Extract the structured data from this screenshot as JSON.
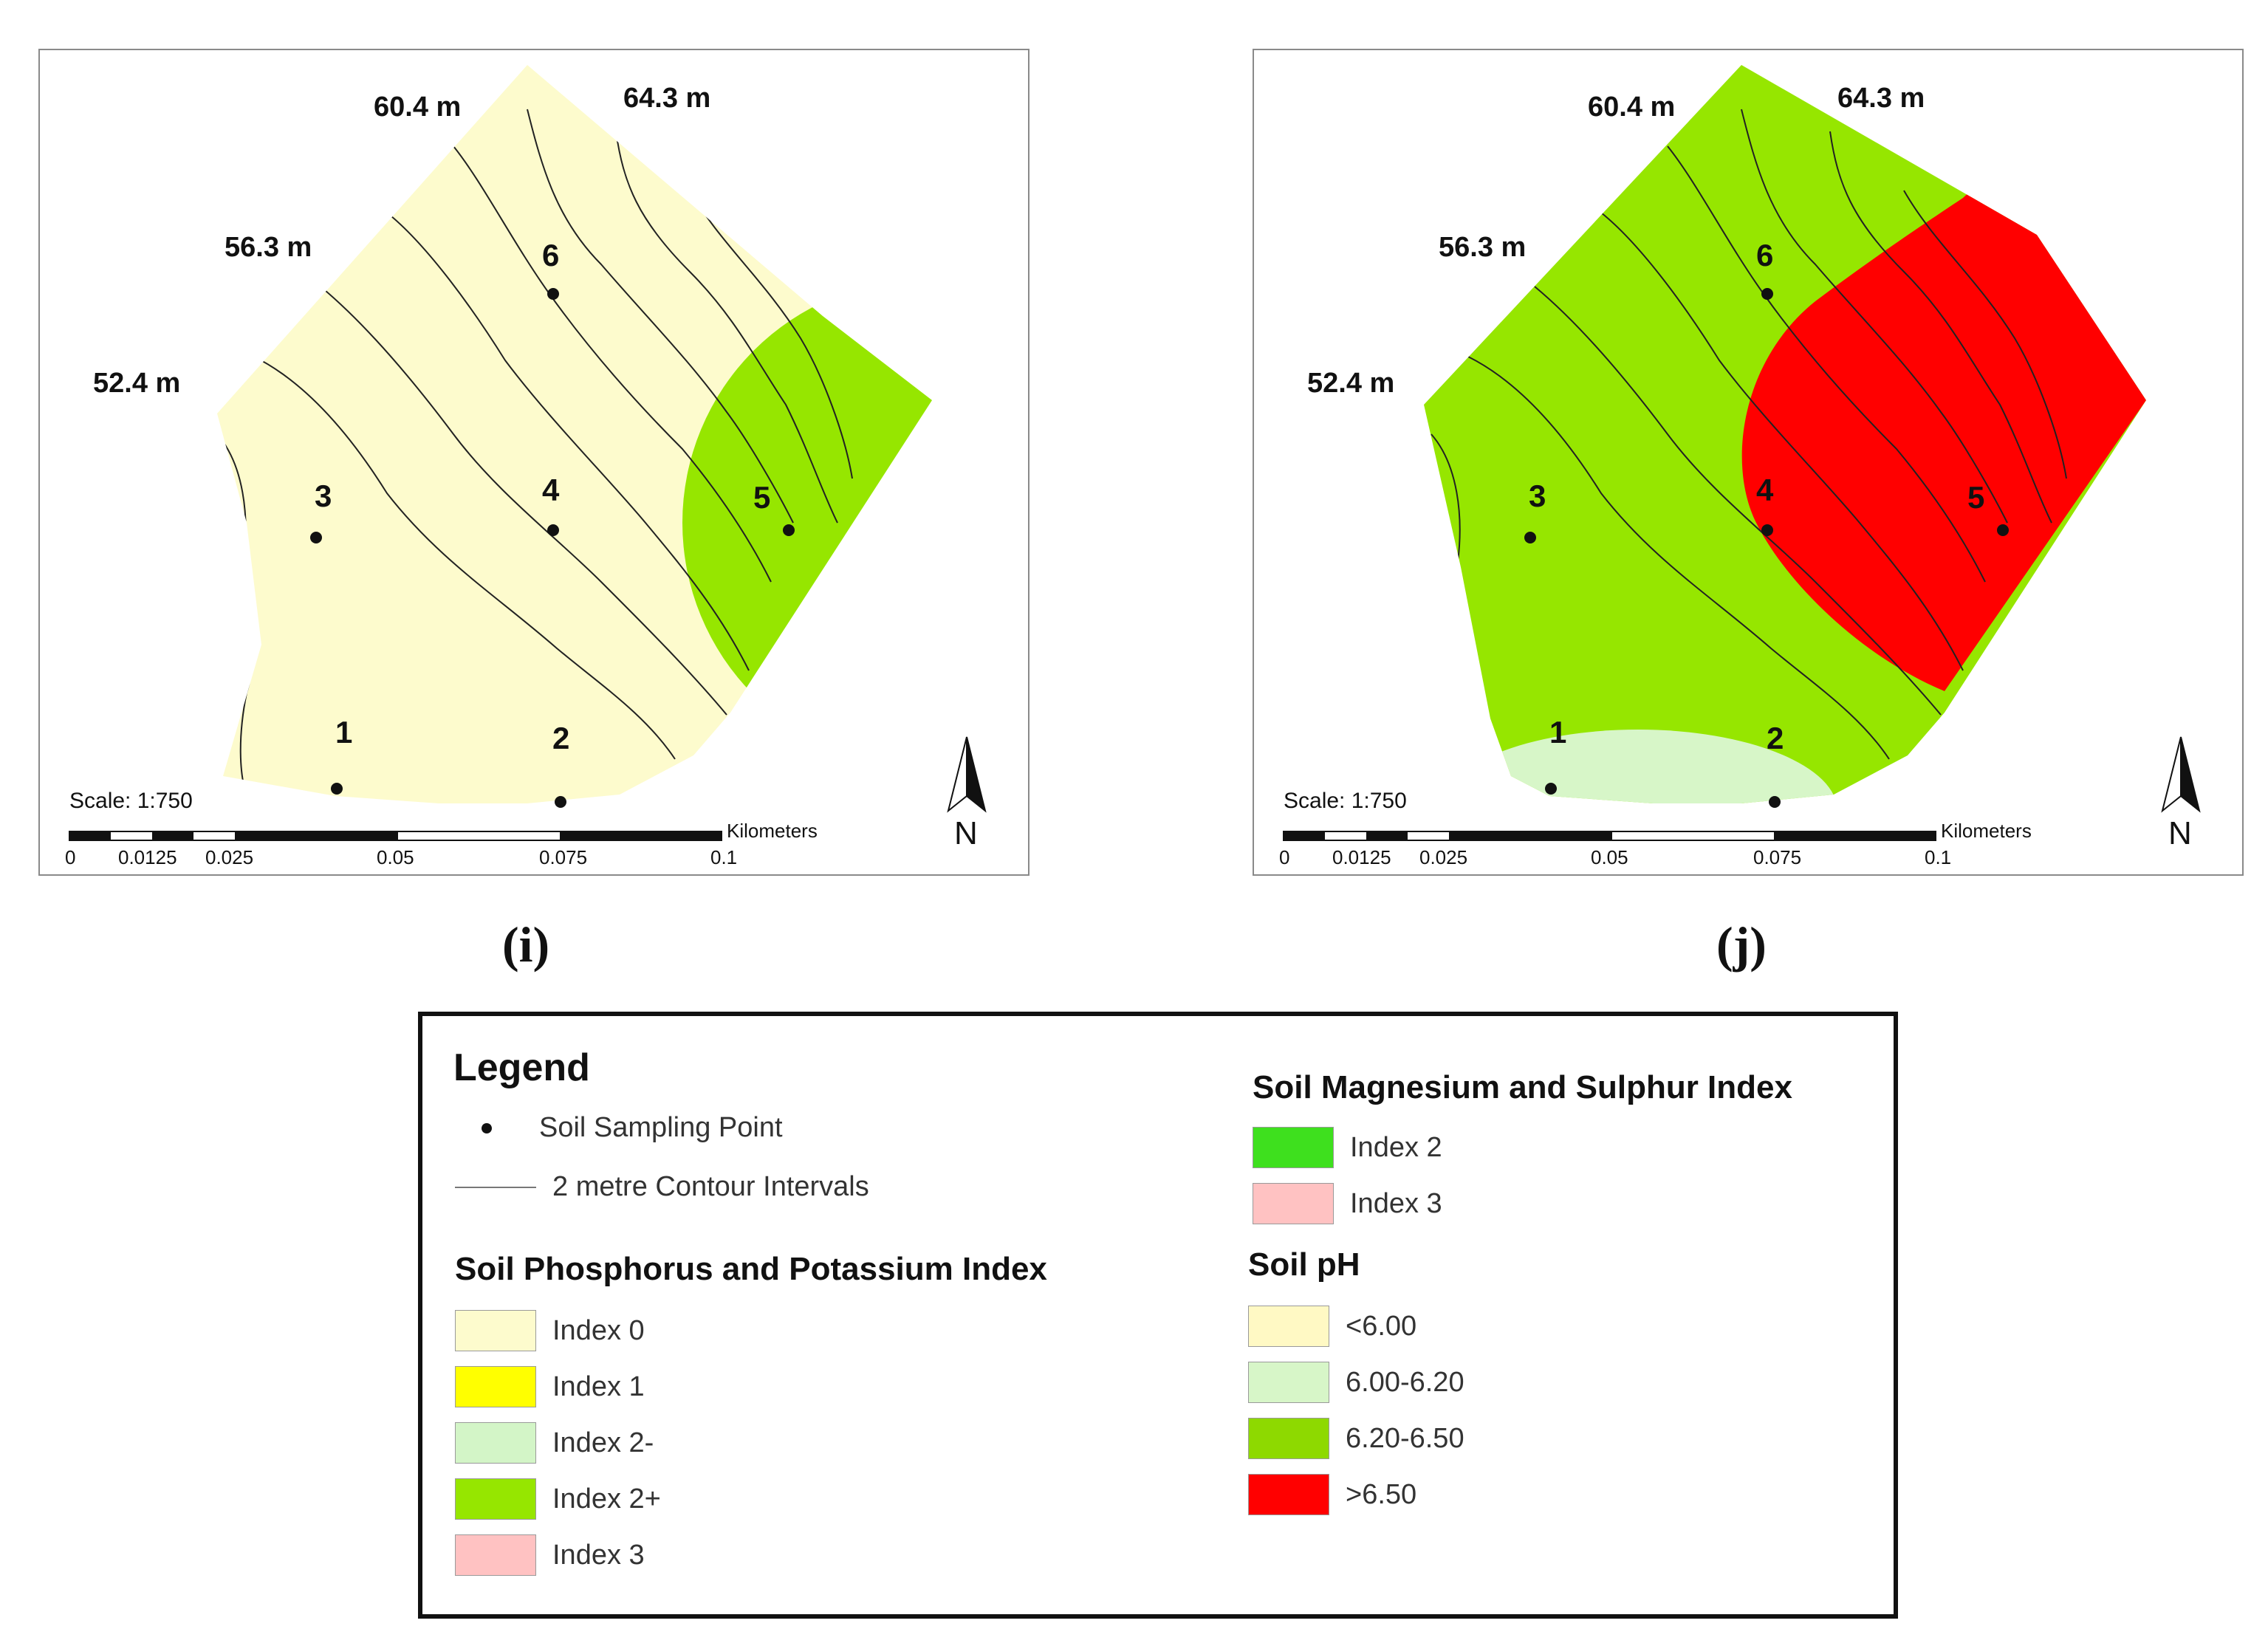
{
  "colors": {
    "index0": "#fdfbcd",
    "index1": "#ffff00",
    "index2minus": "#d3f5c7",
    "index2plus": "#96e600",
    "index3": "#ffc2c2",
    "mg_index2": "#3ee01e",
    "ph_lt600": "#fff9c4",
    "ph_600_620": "#d7f6c8",
    "ph_620_650": "#8ed900",
    "ph_gt650": "#ff0000",
    "map_green": "#96e600",
    "map_red": "#ff0000",
    "contour": "#222222"
  },
  "maps": [
    {
      "panel_label": "(i)",
      "elevations": [
        "52.4 m",
        "56.3 m",
        "60.4 m",
        "64.3 m"
      ],
      "sampling_points": [
        "1",
        "2",
        "3",
        "4",
        "5",
        "6"
      ],
      "scale_text": "Scale: 1:750",
      "scale_unit": "Kilometers",
      "scale_ticks": [
        "0",
        "0.0125",
        "0.025",
        "0.05",
        "0.075",
        "0.1"
      ],
      "north": "N"
    },
    {
      "panel_label": "(j)",
      "elevations": [
        "52.4 m",
        "56.3 m",
        "60.4 m",
        "64.3 m"
      ],
      "sampling_points": [
        "1",
        "2",
        "3",
        "4",
        "5",
        "6"
      ],
      "scale_text": "Scale: 1:750",
      "scale_unit": "Kilometers",
      "scale_ticks": [
        "0",
        "0.0125",
        "0.025",
        "0.05",
        "0.075",
        "0.1"
      ],
      "north": "N"
    }
  ],
  "legend": {
    "title": "Legend",
    "sampling_point": "Soil Sampling Point",
    "contour": "2 metre Contour Intervals",
    "pk_heading": "Soil Phosphorus and Potassium Index",
    "pk_items": [
      "Index 0",
      "Index 1",
      "Index 2-",
      "Index 2+",
      "Index 3"
    ],
    "mgs_heading": "Soil Magnesium and Sulphur Index",
    "mgs_items": [
      "Index 2",
      "Index 3"
    ],
    "ph_heading": "Soil pH",
    "ph_items": [
      "<6.00",
      "6.00-6.20",
      "6.20-6.50",
      ">6.50"
    ]
  }
}
